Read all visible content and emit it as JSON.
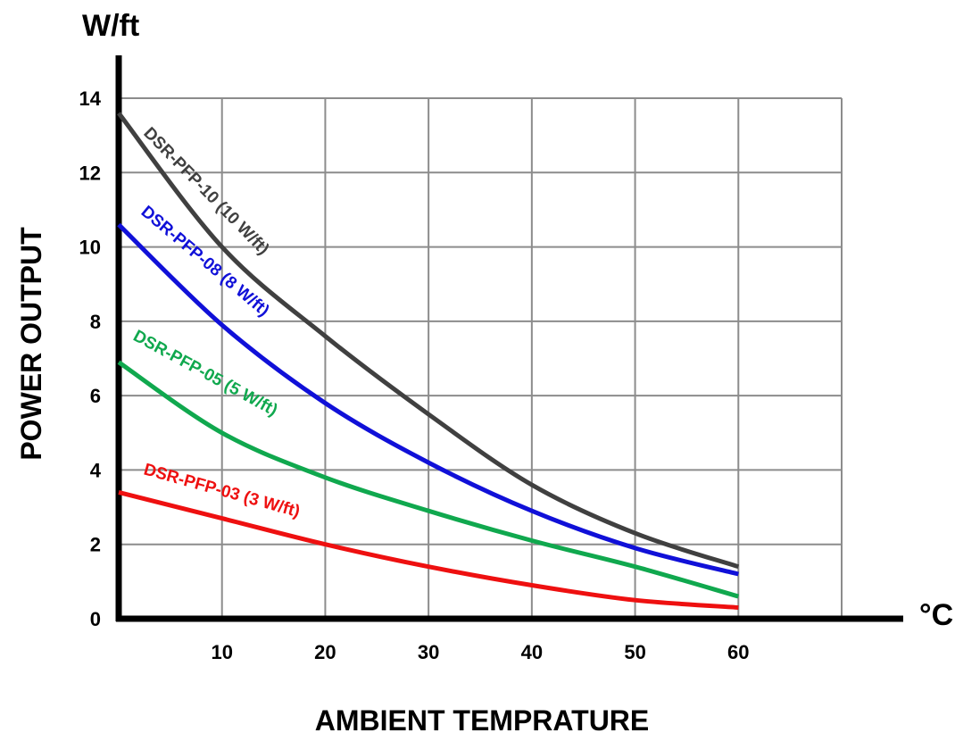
{
  "chart_data": {
    "type": "line",
    "xlabel": "AMBIENT TEMPRATURE",
    "ylabel": "POWER OUTPUT",
    "y_unit": "W/ft",
    "x_unit": "°C",
    "xlim": [
      0,
      70
    ],
    "ylim": [
      0,
      14
    ],
    "x_ticks": [
      10,
      20,
      30,
      40,
      50,
      60
    ],
    "y_ticks": [
      0,
      2,
      4,
      6,
      8,
      10,
      12,
      14
    ],
    "grid": true,
    "legend": "inline labels along curves",
    "series": [
      {
        "name": "DSR-PFP-10 (10 W/ft)",
        "color": "#404040",
        "x": [
          0,
          10,
          20,
          30,
          40,
          50,
          60
        ],
        "y": [
          13.6,
          10.0,
          7.6,
          5.5,
          3.6,
          2.3,
          1.4
        ]
      },
      {
        "name": "DSR-PFP-08 (8 W/ft)",
        "color": "#1010d8",
        "x": [
          0,
          10,
          20,
          30,
          40,
          50,
          60
        ],
        "y": [
          10.6,
          7.9,
          5.8,
          4.2,
          2.9,
          1.9,
          1.2
        ]
      },
      {
        "name": "DSR-PFP-05 (5 W/ft)",
        "color": "#10a84e",
        "x": [
          0,
          10,
          20,
          30,
          40,
          50,
          60
        ],
        "y": [
          6.9,
          5.0,
          3.8,
          2.9,
          2.1,
          1.4,
          0.6
        ]
      },
      {
        "name": "DSR-PFP-03 (3 W/ft)",
        "color": "#ee1010",
        "x": [
          0,
          10,
          20,
          30,
          40,
          50,
          60
        ],
        "y": [
          3.4,
          2.7,
          2.0,
          1.4,
          0.9,
          0.5,
          0.3
        ]
      }
    ]
  }
}
